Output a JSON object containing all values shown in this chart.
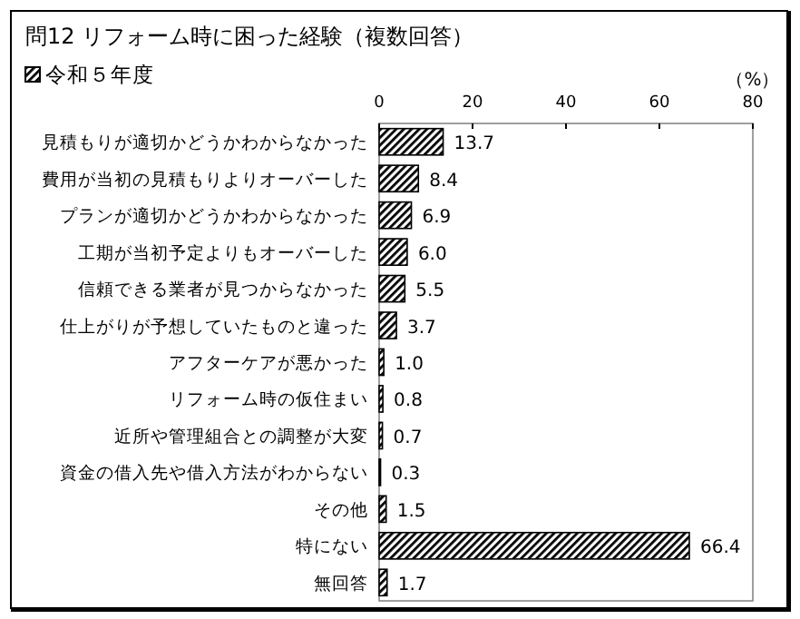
{
  "chart_data": {
    "type": "bar",
    "orientation": "horizontal",
    "title": "問12 リフォーム時に困った経験（複数回答）",
    "xlabel": "（%）",
    "categories": [
      "見積もりが適切かどうかわからなかった",
      "費用が当初の見積もりよりオーバーした",
      "プランが適切かどうかわからなかった",
      "工期が当初予定よりもオーバーした",
      "信頼できる業者が見つからなかった",
      "仕上がりが予想していたものと違った",
      "アフターケアが悪かった",
      "リフォーム時の仮住まい",
      "近所や管理組合との調整が大変",
      "資金の借入先や借入方法がわからない",
      "その他",
      "特にない",
      "無回答"
    ],
    "series": [
      {
        "name": "令和５年度",
        "color": "#000000",
        "values": [
          13.7,
          8.4,
          6.9,
          6.0,
          5.5,
          3.7,
          1.0,
          0.8,
          0.7,
          0.3,
          1.5,
          66.4,
          1.7
        ],
        "value_labels": [
          "13.7",
          "8.4",
          "6.9",
          "6.0",
          "5.5",
          "3.7",
          "1.0",
          "0.8",
          "0.7",
          "0.3",
          "1.5",
          "66.4",
          "1.7"
        ]
      }
    ],
    "xlim": [
      0,
      80
    ],
    "xticks": [
      0,
      20,
      40,
      60,
      80
    ],
    "legend": "top left",
    "grid": false
  }
}
